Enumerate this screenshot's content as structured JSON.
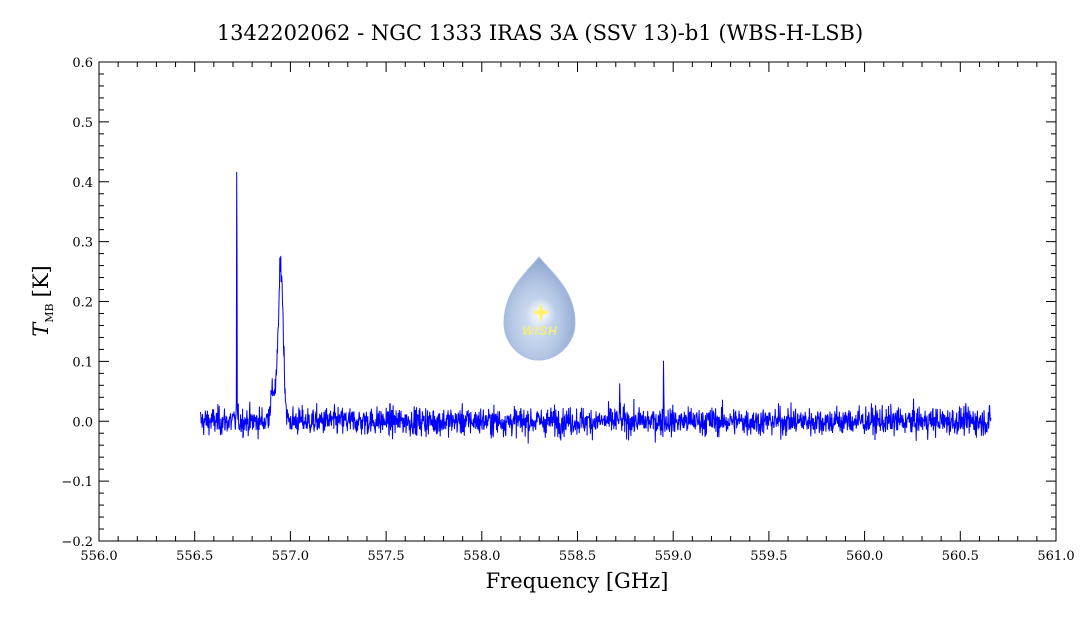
{
  "chart_data": {
    "type": "line",
    "title": "1342202062 - NGC 1333 IRAS 3A (SSV 13)-b1 (WBS-H-LSB)",
    "xlabel": "Frequency [GHz]",
    "ylabel_main": "T",
    "ylabel_sub": "MB",
    "ylabel_unit": "[K]",
    "xlim": [
      556.0,
      561.0
    ],
    "ylim": [
      -0.2,
      0.6
    ],
    "x_ticks": [
      "556.0",
      "556.5",
      "557.0",
      "557.5",
      "558.0",
      "558.5",
      "559.0",
      "559.5",
      "560.0",
      "560.5",
      "561.0"
    ],
    "y_ticks": [
      "−0.2",
      "−0.1",
      "0.0",
      "0.1",
      "0.2",
      "0.3",
      "0.4",
      "0.5",
      "0.6"
    ],
    "series": [
      {
        "color": "#0000ff",
        "x_range": [
          556.53,
          560.66
        ],
        "noise_rms": 0.02,
        "features": [
          {
            "x": 556.72,
            "y": 0.49,
            "kind": "narrow spike"
          },
          {
            "x": 556.95,
            "y": 0.26,
            "kind": "broad peak"
          },
          {
            "x": 558.95,
            "y": 0.11,
            "kind": "narrow spike"
          },
          {
            "x": 558.72,
            "y": 0.07,
            "kind": "narrow spike"
          }
        ]
      }
    ],
    "grid": false,
    "legend": "none"
  },
  "watermark": {
    "text": "WISH"
  }
}
